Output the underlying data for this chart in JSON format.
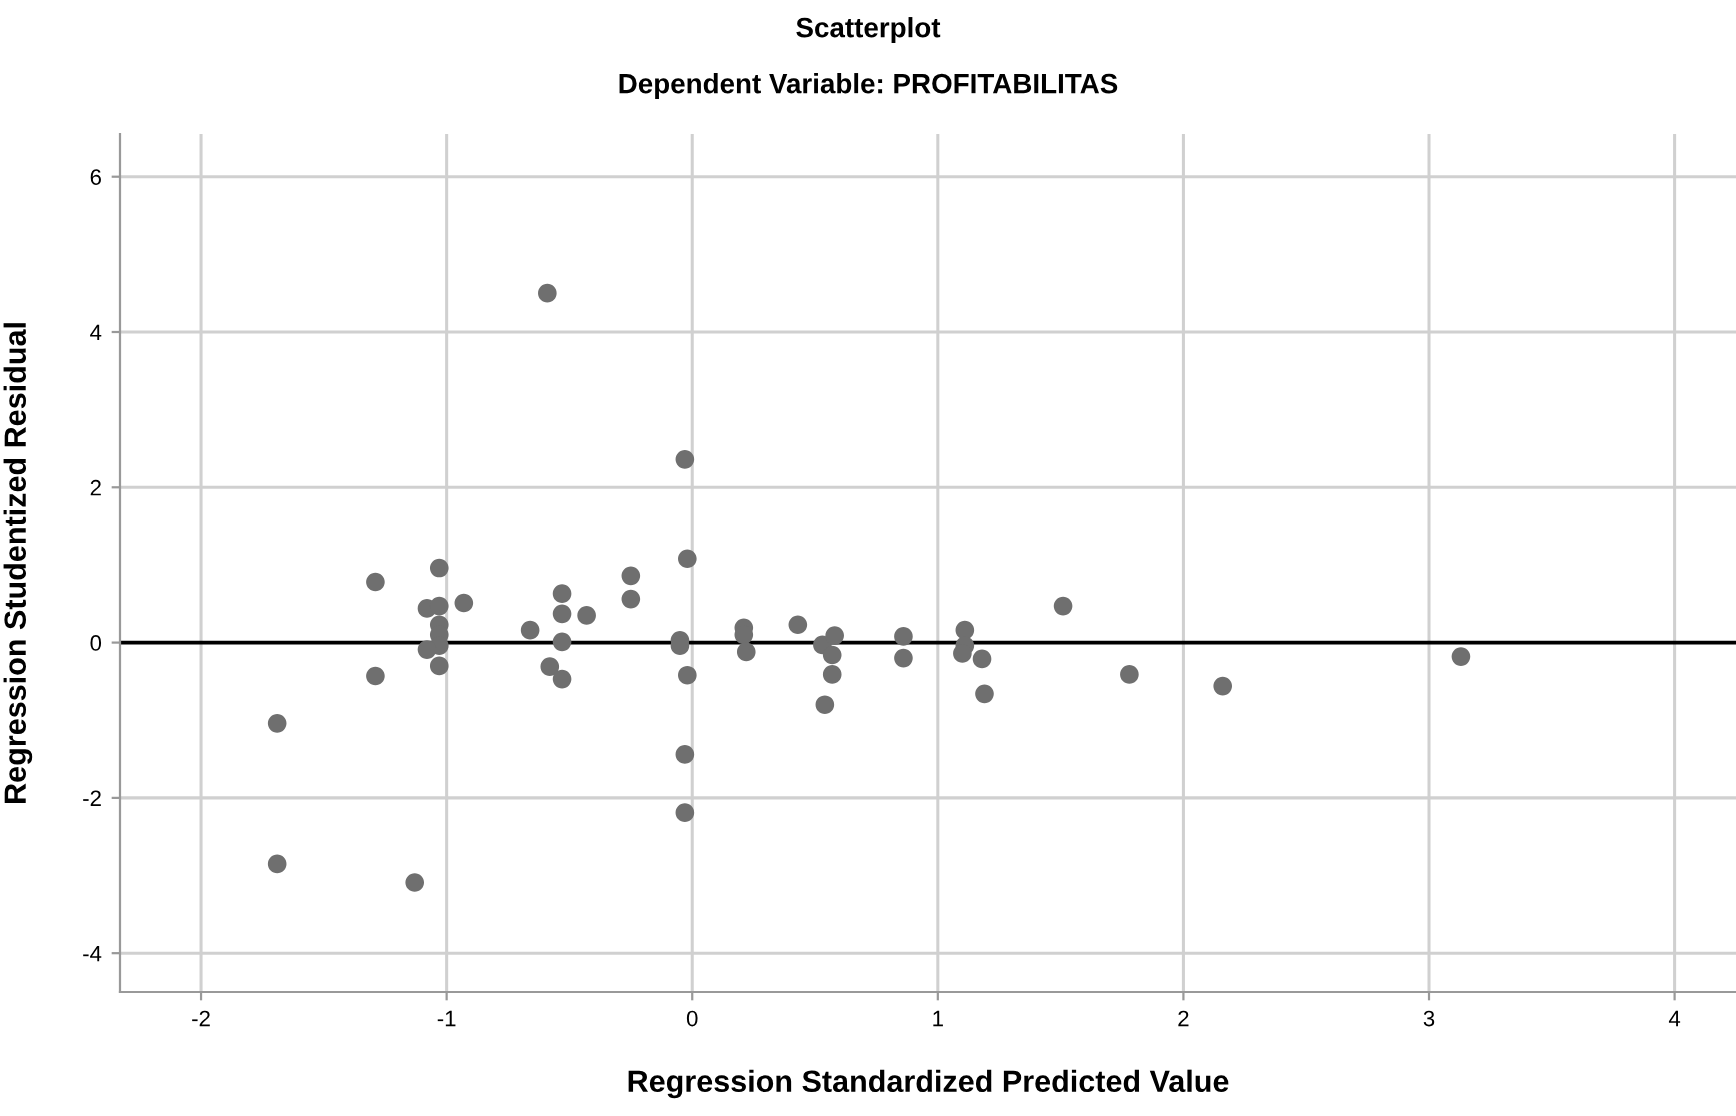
{
  "chart_data": {
    "type": "scatter",
    "title": "Scatterplot",
    "subtitle": "Dependent Variable: PROFITABILITAS",
    "xlabel": "Regression Standardized Predicted Value",
    "ylabel": "Regression Studentized Residual",
    "series": [
      {
        "color": "#6f6f6f",
        "x": [
          -0.59,
          -0.03,
          -0.02,
          -1.29,
          -1.03,
          -1.08,
          -1.03,
          -0.93,
          -1.03,
          -1.03,
          -1.03,
          -1.08,
          -1.03,
          -1.29,
          -1.69,
          -1.69,
          -1.13,
          -0.66,
          -0.53,
          -0.53,
          -0.43,
          -0.25,
          -0.25,
          -0.53,
          -0.58,
          -0.53,
          -0.05,
          -0.05,
          -0.02,
          -0.03,
          -0.03,
          0.21,
          0.21,
          0.22,
          0.43,
          0.53,
          0.58,
          0.57,
          0.57,
          0.54,
          0.86,
          0.86,
          1.11,
          1.11,
          1.1,
          1.18,
          1.19,
          1.51,
          1.78,
          2.16,
          3.13
        ],
        "values": [
          4.5,
          2.36,
          1.08,
          0.78,
          0.96,
          0.44,
          0.47,
          0.51,
          0.23,
          0.1,
          -0.04,
          -0.09,
          -0.3,
          -0.43,
          -1.04,
          -2.85,
          -3.09,
          0.16,
          0.63,
          0.37,
          0.35,
          0.86,
          0.56,
          0.01,
          -0.31,
          -0.47,
          0.03,
          -0.04,
          -0.42,
          -1.44,
          -2.19,
          0.19,
          0.1,
          -0.12,
          0.23,
          -0.03,
          0.09,
          -0.16,
          -0.41,
          -0.8,
          0.08,
          -0.2,
          0.16,
          -0.04,
          -0.14,
          -0.21,
          -0.66,
          0.47,
          -0.41,
          -0.56,
          -0.18
        ]
      }
    ],
    "xlim": [
      -2.33,
      4.25
    ],
    "ylim": [
      -4.5,
      6.55
    ],
    "xticks": [
      -2,
      -1,
      0,
      1,
      2,
      3,
      4
    ],
    "yticks": [
      -4,
      -2,
      0,
      2,
      4,
      6
    ],
    "grid": true,
    "marker": "circle",
    "ref_lines": [
      {
        "axis": "y",
        "value": 0,
        "color": "#000000"
      }
    ]
  }
}
